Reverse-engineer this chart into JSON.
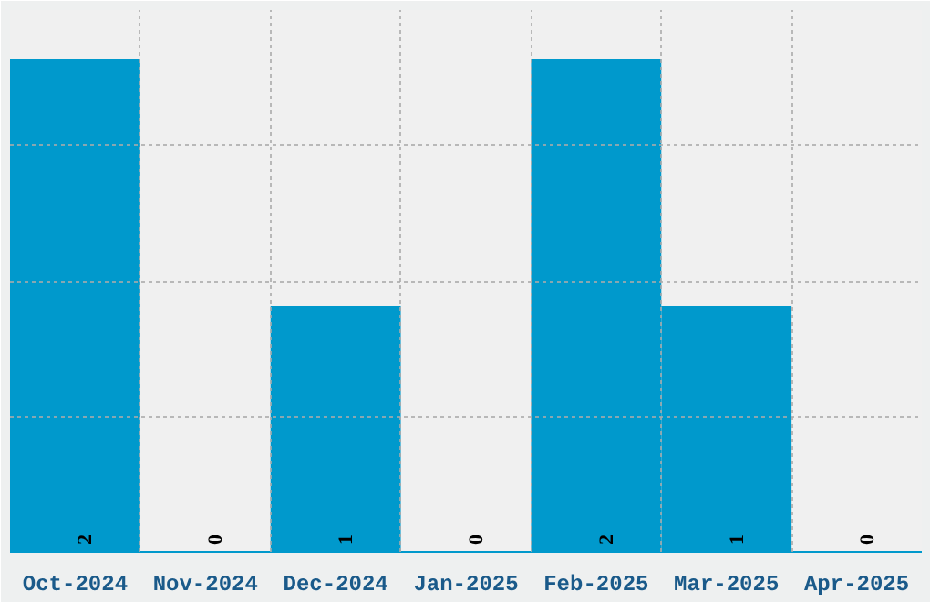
{
  "chart_data": {
    "type": "bar",
    "categories": [
      "Oct-2024",
      "Nov-2024",
      "Dec-2024",
      "Jan-2025",
      "Feb-2025",
      "Mar-2025",
      "Apr-2025"
    ],
    "values": [
      2,
      0,
      1,
      0,
      2,
      1,
      0
    ],
    "color": "#0099cc",
    "ylim": [
      0,
      2.2
    ],
    "yticks": [
      {
        "value": 0.55,
        "label": null
      },
      {
        "value": 1.1,
        "label": null
      },
      {
        "value": 1.65,
        "label": null
      }
    ],
    "tick_labels": "x",
    "grid": true,
    "data_labels": true
  }
}
